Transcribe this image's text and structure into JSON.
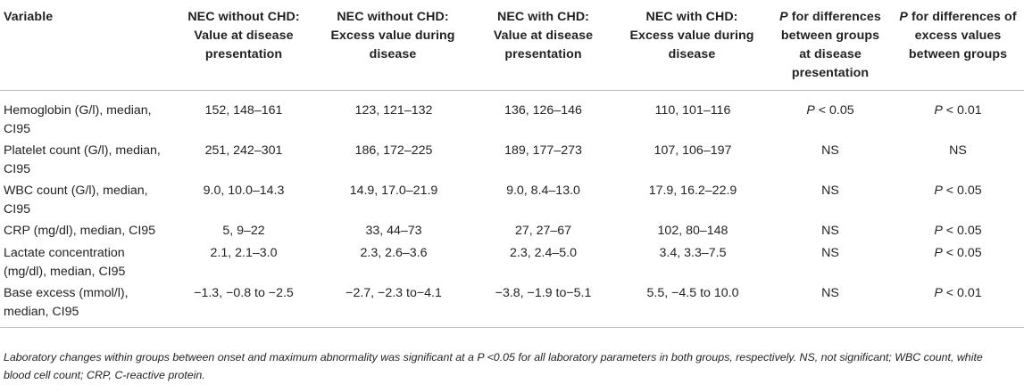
{
  "table": {
    "headers": [
      [
        {
          "t": "Variable"
        }
      ],
      [
        {
          "t": "NEC without CHD: Value at disease presentation"
        }
      ],
      [
        {
          "t": "NEC without CHD: Excess value during disease"
        }
      ],
      [
        {
          "t": "NEC with CHD: Value at disease presentation"
        }
      ],
      [
        {
          "t": "NEC with CHD: Excess value during disease"
        }
      ],
      [
        {
          "t": "P",
          "i": true
        },
        {
          "t": " for differences between groups at disease presentation"
        }
      ],
      [
        {
          "t": "P",
          "i": true
        },
        {
          "t": " for differences of excess values between groups"
        }
      ]
    ],
    "rows": [
      [
        [
          {
            "t": "Hemoglobin (G/l), median, CI95"
          }
        ],
        [
          {
            "t": "152, 148–161"
          }
        ],
        [
          {
            "t": "123, 121–132"
          }
        ],
        [
          {
            "t": "136, 126–146"
          }
        ],
        [
          {
            "t": "110, 101–116"
          }
        ],
        [
          {
            "t": "P",
            "i": true
          },
          {
            "t": " < 0.05"
          }
        ],
        [
          {
            "t": "P",
            "i": true
          },
          {
            "t": " < 0.01"
          }
        ]
      ],
      [
        [
          {
            "t": "Platelet count (G/l), median, CI95"
          }
        ],
        [
          {
            "t": "251, 242–301"
          }
        ],
        [
          {
            "t": "186, 172–225"
          }
        ],
        [
          {
            "t": "189, 177–273"
          }
        ],
        [
          {
            "t": "107, 106–197"
          }
        ],
        [
          {
            "t": "NS"
          }
        ],
        [
          {
            "t": "NS"
          }
        ]
      ],
      [
        [
          {
            "t": "WBC count (G/l), median, CI95"
          }
        ],
        [
          {
            "t": "9.0, 10.0–14.3"
          }
        ],
        [
          {
            "t": "14.9, 17.0–21.9"
          }
        ],
        [
          {
            "t": "9.0, 8.4–13.0"
          }
        ],
        [
          {
            "t": "17.9, 16.2–22.9"
          }
        ],
        [
          {
            "t": "NS"
          }
        ],
        [
          {
            "t": "P",
            "i": true
          },
          {
            "t": " < 0.05"
          }
        ]
      ],
      [
        [
          {
            "t": "CRP (mg/dl), median, CI95"
          }
        ],
        [
          {
            "t": "5, 9–22"
          }
        ],
        [
          {
            "t": "33, 44–73"
          }
        ],
        [
          {
            "t": "27, 27–67"
          }
        ],
        [
          {
            "t": "102, 80–148"
          }
        ],
        [
          {
            "t": "NS"
          }
        ],
        [
          {
            "t": "P",
            "i": true
          },
          {
            "t": " < 0.05"
          }
        ]
      ],
      [
        [
          {
            "t": "Lactate concentration (mg/dl), median, CI95"
          }
        ],
        [
          {
            "t": "2.1, 2.1–3.0"
          }
        ],
        [
          {
            "t": "2.3, 2.6–3.6"
          }
        ],
        [
          {
            "t": "2.3, 2.4–5.0"
          }
        ],
        [
          {
            "t": "3.4, 3.3–7.5"
          }
        ],
        [
          {
            "t": "NS"
          }
        ],
        [
          {
            "t": "P",
            "i": true
          },
          {
            "t": " < 0.05"
          }
        ]
      ],
      [
        [
          {
            "t": "Base excess (mmol/l), median, CI95"
          }
        ],
        [
          {
            "t": "−1.3, −0.8 to −2.5"
          }
        ],
        [
          {
            "t": "−2.7, −2.3 to−4.1"
          }
        ],
        [
          {
            "t": "−3.8, −1.9 to−5.1"
          }
        ],
        [
          {
            "t": "5.5, −4.5 to 10.0"
          }
        ],
        [
          {
            "t": "NS"
          }
        ],
        [
          {
            "t": "P",
            "i": true
          },
          {
            "t": " < 0.01"
          }
        ]
      ]
    ]
  },
  "footnote": "Laboratory changes within groups between onset and maximum abnormality was significant at a P <0.05 for all laboratory parameters in both groups, respectively. NS, not significant; WBC count, white blood cell count; CRP, C-reactive protein."
}
